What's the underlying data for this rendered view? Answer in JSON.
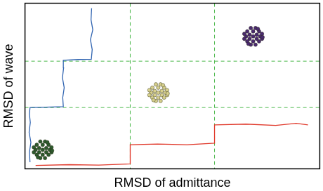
{
  "chart_data": {
    "type": "scatter",
    "x_label": "RMSD of admittance",
    "y_label": "RMSD of wave",
    "xlim": [
      0,
      10
    ],
    "ylim": [
      0,
      10
    ],
    "xticks": [
      3.57,
      6.43
    ],
    "yticks": [
      3.7,
      6.5
    ],
    "grid": true,
    "tick_labels": false,
    "series": [
      {
        "type": "line",
        "color": "#2f63b0",
        "line_style": "solid",
        "values": [
          [
            0.17,
            0.4
          ],
          [
            0.15,
            1.0
          ],
          [
            0.2,
            1.6
          ],
          [
            0.14,
            2.2
          ],
          [
            0.18,
            2.8
          ],
          [
            0.15,
            3.3
          ],
          [
            0.17,
            3.7
          ],
          [
            0.7,
            3.72
          ],
          [
            1.3,
            3.75
          ],
          [
            1.28,
            4.3
          ],
          [
            1.33,
            4.9
          ],
          [
            1.27,
            5.5
          ],
          [
            1.31,
            6.1
          ],
          [
            1.3,
            6.55
          ],
          [
            1.8,
            6.6
          ],
          [
            2.25,
            6.62
          ],
          [
            2.28,
            7.2
          ],
          [
            2.22,
            7.8
          ],
          [
            2.3,
            8.4
          ],
          [
            2.24,
            9.0
          ],
          [
            2.26,
            9.7
          ]
        ]
      },
      {
        "type": "line",
        "color": "#e0392b",
        "line_style": "solid",
        "values": [
          [
            0.36,
            0.2
          ],
          [
            1.5,
            0.25
          ],
          [
            2.5,
            0.22
          ],
          [
            3.57,
            0.3
          ],
          [
            3.57,
            1.45
          ],
          [
            4.5,
            1.5
          ],
          [
            5.5,
            1.45
          ],
          [
            6.43,
            1.55
          ],
          [
            6.43,
            2.65
          ],
          [
            7.5,
            2.7
          ],
          [
            8.5,
            2.62
          ],
          [
            9.2,
            2.75
          ],
          [
            9.6,
            2.65
          ]
        ]
      },
      {
        "type": "scatter",
        "color": "#2d5a2d",
        "marker": "circle",
        "values": [
          [
            0.6,
            1.15
          ],
          [
            0.72,
            1.25
          ],
          [
            0.48,
            1.25
          ],
          [
            0.72,
            1.0
          ],
          [
            0.48,
            1.0
          ],
          [
            0.6,
            1.45
          ],
          [
            0.6,
            0.85
          ],
          [
            0.84,
            1.15
          ],
          [
            0.36,
            1.15
          ],
          [
            0.8,
            1.45
          ],
          [
            0.4,
            1.45
          ],
          [
            0.8,
            0.85
          ],
          [
            0.4,
            0.85
          ],
          [
            0.68,
            1.65
          ],
          [
            0.52,
            1.65
          ],
          [
            0.68,
            0.65
          ],
          [
            0.52,
            0.65
          ],
          [
            0.9,
            1.3
          ],
          [
            0.3,
            1.3
          ],
          [
            0.9,
            1.0
          ],
          [
            0.3,
            1.0
          ],
          [
            0.76,
            1.6
          ],
          [
            0.44,
            0.7
          ],
          [
            0.92,
            1.1
          ]
        ]
      },
      {
        "type": "scatter",
        "color": "#d6cf8c",
        "marker": "circle",
        "values": [
          [
            4.52,
            4.6
          ],
          [
            4.64,
            4.7
          ],
          [
            4.4,
            4.7
          ],
          [
            4.64,
            4.45
          ],
          [
            4.4,
            4.45
          ],
          [
            4.52,
            4.9
          ],
          [
            4.52,
            4.3
          ],
          [
            4.76,
            4.6
          ],
          [
            4.28,
            4.6
          ],
          [
            4.72,
            4.9
          ],
          [
            4.32,
            4.9
          ],
          [
            4.72,
            4.3
          ],
          [
            4.32,
            4.3
          ],
          [
            4.6,
            5.1
          ],
          [
            4.44,
            5.1
          ],
          [
            4.6,
            4.1
          ],
          [
            4.44,
            4.1
          ],
          [
            4.82,
            4.75
          ],
          [
            4.22,
            4.75
          ],
          [
            4.82,
            4.45
          ],
          [
            4.22,
            4.45
          ],
          [
            4.68,
            5.05
          ],
          [
            4.36,
            4.15
          ],
          [
            4.84,
            4.55
          ]
        ]
      },
      {
        "type": "scatter",
        "color": "#4a2a70",
        "marker": "circle",
        "values": [
          [
            7.74,
            8.0
          ],
          [
            7.86,
            8.1
          ],
          [
            7.62,
            8.1
          ],
          [
            7.86,
            7.85
          ],
          [
            7.62,
            7.85
          ],
          [
            7.74,
            8.3
          ],
          [
            7.74,
            7.7
          ],
          [
            7.98,
            8.0
          ],
          [
            7.5,
            8.0
          ],
          [
            7.94,
            8.3
          ],
          [
            7.54,
            8.3
          ],
          [
            7.94,
            7.7
          ],
          [
            7.54,
            7.7
          ],
          [
            7.82,
            8.5
          ],
          [
            7.66,
            8.5
          ],
          [
            7.82,
            7.5
          ],
          [
            7.66,
            7.5
          ],
          [
            8.04,
            8.15
          ],
          [
            7.44,
            8.15
          ],
          [
            8.04,
            7.85
          ],
          [
            7.44,
            7.85
          ],
          [
            7.9,
            8.45
          ],
          [
            7.58,
            7.55
          ],
          [
            8.06,
            7.95
          ]
        ]
      }
    ]
  }
}
